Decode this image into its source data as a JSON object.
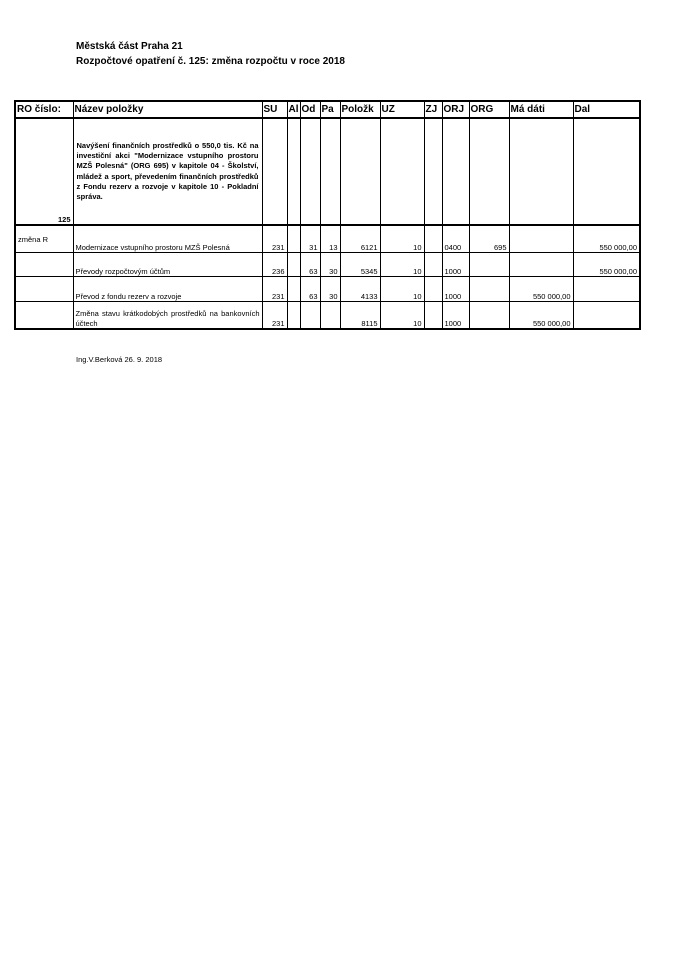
{
  "header": {
    "line1": "Městská část  Praha 21",
    "line2": "Rozpočtové opatření č. 125: změna rozpočtu v roce 2018"
  },
  "columns": [
    "RO číslo:",
    "Název položky",
    "SU",
    "Al",
    "Od",
    "Pa",
    "Položk",
    "UZ",
    "ZJ",
    "ORJ",
    "ORG",
    "Má dáti",
    "Dal"
  ],
  "ro": {
    "number": "125",
    "description": "Navýšení finančních prostředků o 550,0 tis. Kč na investiční akci \"Modernizace vstupního prostoru MZŠ Polesná\" (ORG 695) v kapitole 04 - Školství, mládež a sport, převedením finančních prostředků z Fondu rezerv a rozvoje v kapitole 10 -  Pokladní správa."
  },
  "rows": [
    {
      "ro": "změna R",
      "name": "Modernizace vstupního prostoru MZŠ Polesná",
      "su": "231",
      "al": "",
      "od": "31",
      "pa": "13",
      "polozka": "6121",
      "uz": "10",
      "zj": "",
      "orj": "0400",
      "org": "695",
      "ma_dati": "",
      "dal": "550 000,00"
    },
    {
      "ro": "",
      "name": "Převody rozpočtovým účtům",
      "su": "236",
      "al": "",
      "od": "63",
      "pa": "30",
      "polozka": "5345",
      "uz": "10",
      "zj": "",
      "orj": "1000",
      "org": "",
      "ma_dati": "",
      "dal": "550 000,00"
    },
    {
      "ro": "",
      "name": "Převod z fondu rezerv a rozvoje",
      "su": "231",
      "al": "",
      "od": "63",
      "pa": "30",
      "polozka": "4133",
      "uz": "10",
      "zj": "",
      "orj": "1000",
      "org": "",
      "ma_dati": "550 000,00",
      "dal": ""
    },
    {
      "ro": "",
      "name": "Změna stavu krátkodobých prostředků na bankovních účtech",
      "su": "231",
      "al": "",
      "od": "",
      "pa": "",
      "polozka": "8115",
      "uz": "10",
      "zj": "",
      "orj": "1000",
      "org": "",
      "ma_dati": "550 000,00",
      "dal": ""
    }
  ],
  "footer": {
    "signature": "Ing.V.Berková   26. 9. 2018"
  }
}
